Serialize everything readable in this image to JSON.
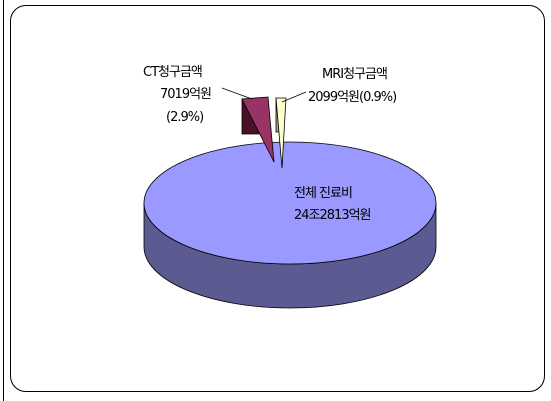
{
  "chart_data": {
    "type": "pie",
    "slices": [
      {
        "name": "전체 진료비",
        "value_text": "24조2813억원",
        "percent": 96.2,
        "color": "#9999ff",
        "side_color": "#5b5b92"
      },
      {
        "name": "CT청구금액",
        "value_text": "7019억원",
        "percent_text": "(2.9%)",
        "percent": 2.9,
        "color": "#993366",
        "side_color": "#4a1029"
      },
      {
        "name": "MRI청구금액",
        "value_text": "2099억원(0.9%)",
        "percent": 0.9,
        "color": "#ffffcc",
        "side_color": "#a8a880"
      }
    ]
  }
}
